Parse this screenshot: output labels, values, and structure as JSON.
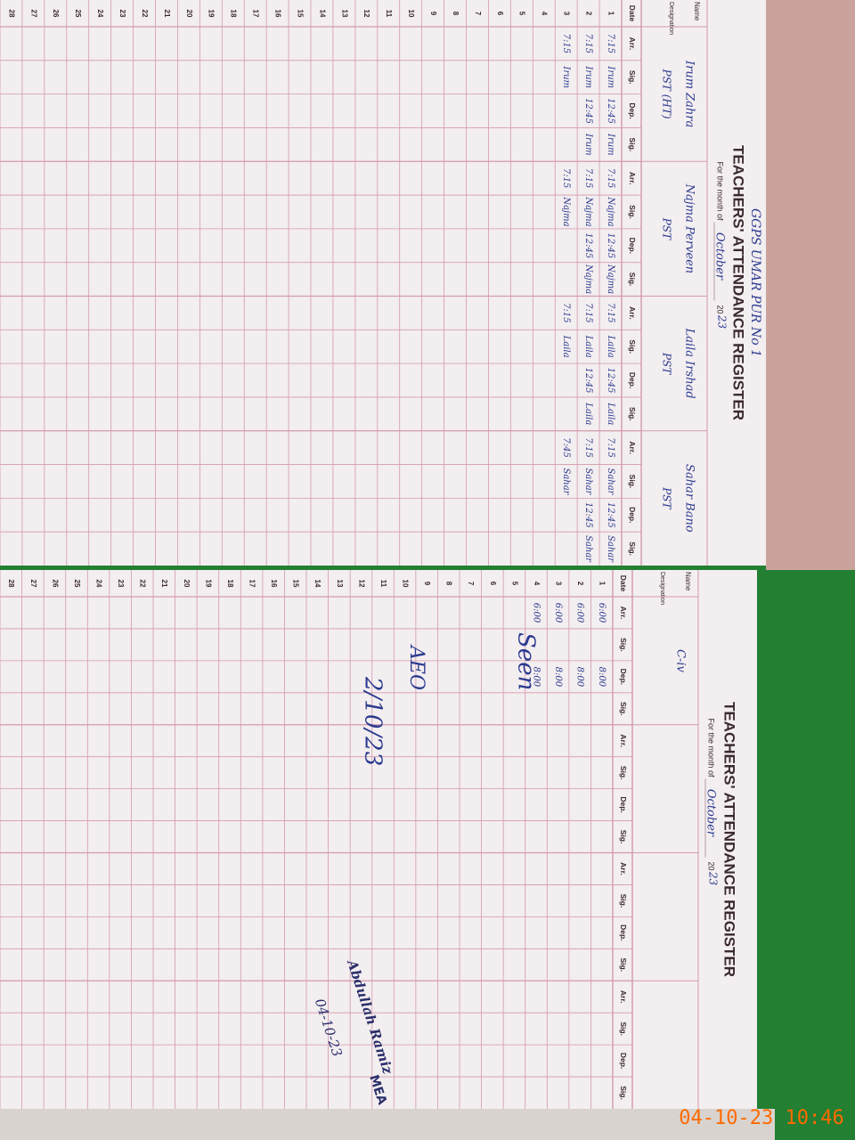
{
  "left_page": {
    "school": "GGPS UMAR PUR No 1",
    "title": "TEACHERS' ATTENDANCE REGISTER",
    "month_label": "For the month of",
    "month": "October",
    "year_label": "20",
    "year": "23",
    "name_label": "Name",
    "designation_label": "Designation",
    "teachers": [
      {
        "name": "Irum Zahra",
        "designation": "PST (HT)"
      },
      {
        "name": "Najma Perveen",
        "designation": "PST"
      },
      {
        "name": "Laila Irshad",
        "designation": "PST"
      },
      {
        "name": "Sahar Bano",
        "designation": "PST"
      }
    ],
    "column_headers": [
      "Date",
      "Arr.",
      "Sig.",
      "Dep.",
      "Sig."
    ],
    "dates": [
      1,
      2,
      3,
      4,
      5,
      6,
      7,
      8,
      9,
      10,
      11,
      12,
      13,
      14,
      15,
      16,
      17,
      18,
      19,
      20,
      21,
      22,
      23,
      24,
      25,
      26,
      27,
      28
    ],
    "entries": [
      [
        "7:15",
        "Irum",
        "12:45",
        "Irum",
        "7:15",
        "Najma",
        "12:45",
        "Najma",
        "7:15",
        "Laila",
        "12:45",
        "Laila",
        "7:15",
        "Sahar",
        "12:45",
        "Sahar"
      ],
      [
        "7:15",
        "Irum",
        "12:45",
        "Irum",
        "7:15",
        "Najma",
        "12:45",
        "Najma",
        "7:15",
        "Laila",
        "12:45",
        "Laila",
        "7:15",
        "Sahar",
        "12:45",
        "Sahar"
      ],
      [
        "7:15",
        "Irum",
        null,
        null,
        "7:15",
        "Najma",
        null,
        null,
        "7:15",
        "Laila",
        null,
        null,
        "7:45",
        "Sahar"
      ]
    ]
  },
  "right_page": {
    "title": "TEACHERS' ATTENDANCE REGISTER",
    "month_label": "For the month of",
    "month": "October",
    "year_label": "20",
    "year": "23",
    "name_label": "Name",
    "designation_label": "Designation",
    "teachers": [
      {
        "name": "C-iv",
        "designation": null
      },
      {
        "name": null,
        "designation": null
      },
      {
        "name": null,
        "designation": null
      },
      {
        "name": null,
        "designation": null
      }
    ],
    "column_headers": [
      "Date",
      "Arr.",
      "Sig.",
      "Dep.",
      "Sig."
    ],
    "dates": [
      1,
      2,
      3,
      4,
      5,
      6,
      7,
      8,
      9,
      10,
      11,
      12,
      13,
      14,
      15,
      16,
      17,
      18,
      19,
      20,
      21,
      22,
      23,
      24,
      25,
      26,
      27,
      28
    ],
    "entries": [
      [
        "6:00",
        null,
        "8:00"
      ],
      [
        "6:00",
        null,
        "8:00"
      ],
      [
        "6:00",
        null,
        "8:00"
      ],
      [
        "6:00",
        null,
        "8:00"
      ]
    ],
    "remarks": [
      "Seen",
      "AEO",
      "2/10/23"
    ],
    "stamp": {
      "name": "Abdullah Ramiz",
      "role": "MEA",
      "date": "04-10-23"
    }
  },
  "timestamp": "04-10-23  10:46"
}
